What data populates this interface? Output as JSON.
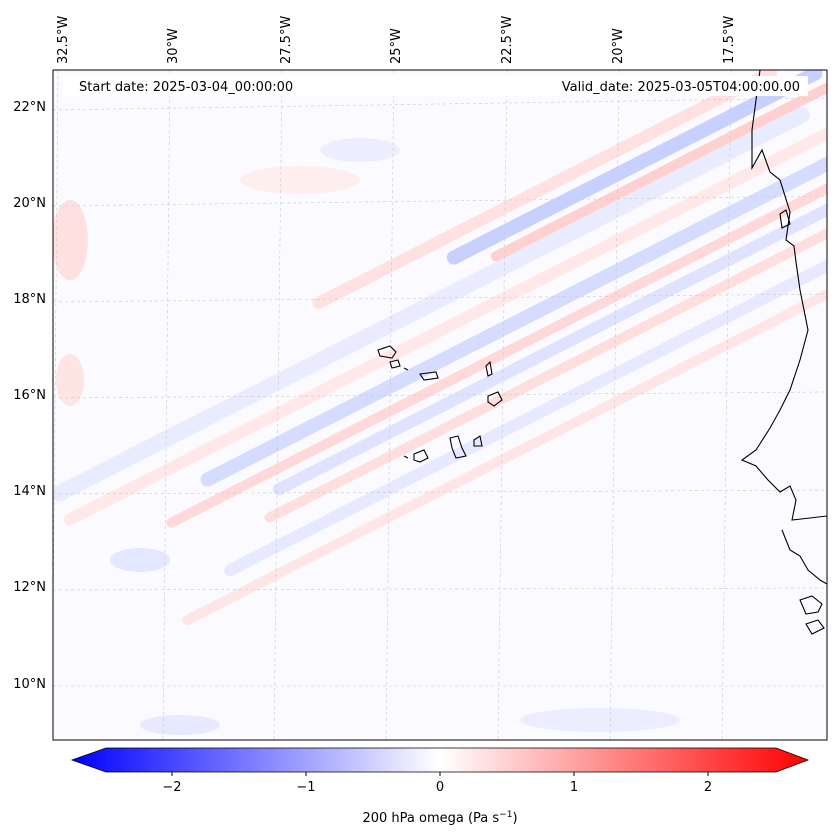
{
  "header": {
    "start_date": "Start date: 2025-03-04_00:00:00",
    "valid_date": "Valid_date: 2025-03-05T04:00:00.00"
  },
  "axes": {
    "lon_labels": [
      "32.5°W",
      "30°W",
      "27.5°W",
      "25°W",
      "22.5°W",
      "20°W",
      "17.5°W"
    ],
    "lat_labels": [
      "22°N",
      "20°N",
      "18°N",
      "16°N",
      "14°N",
      "12°N",
      "10°N"
    ]
  },
  "colorbar": {
    "ticks": [
      "−2",
      "−1",
      "0",
      "1",
      "2"
    ],
    "label": "200 hPa omega (Pa s",
    "label_exponent": "−1",
    "label_close": ")",
    "vmin": -2.6,
    "vmax": 2.6
  },
  "map": {
    "field": "200 hPa omega",
    "land_outline_color": "#000000",
    "colormap": "bwr"
  }
}
